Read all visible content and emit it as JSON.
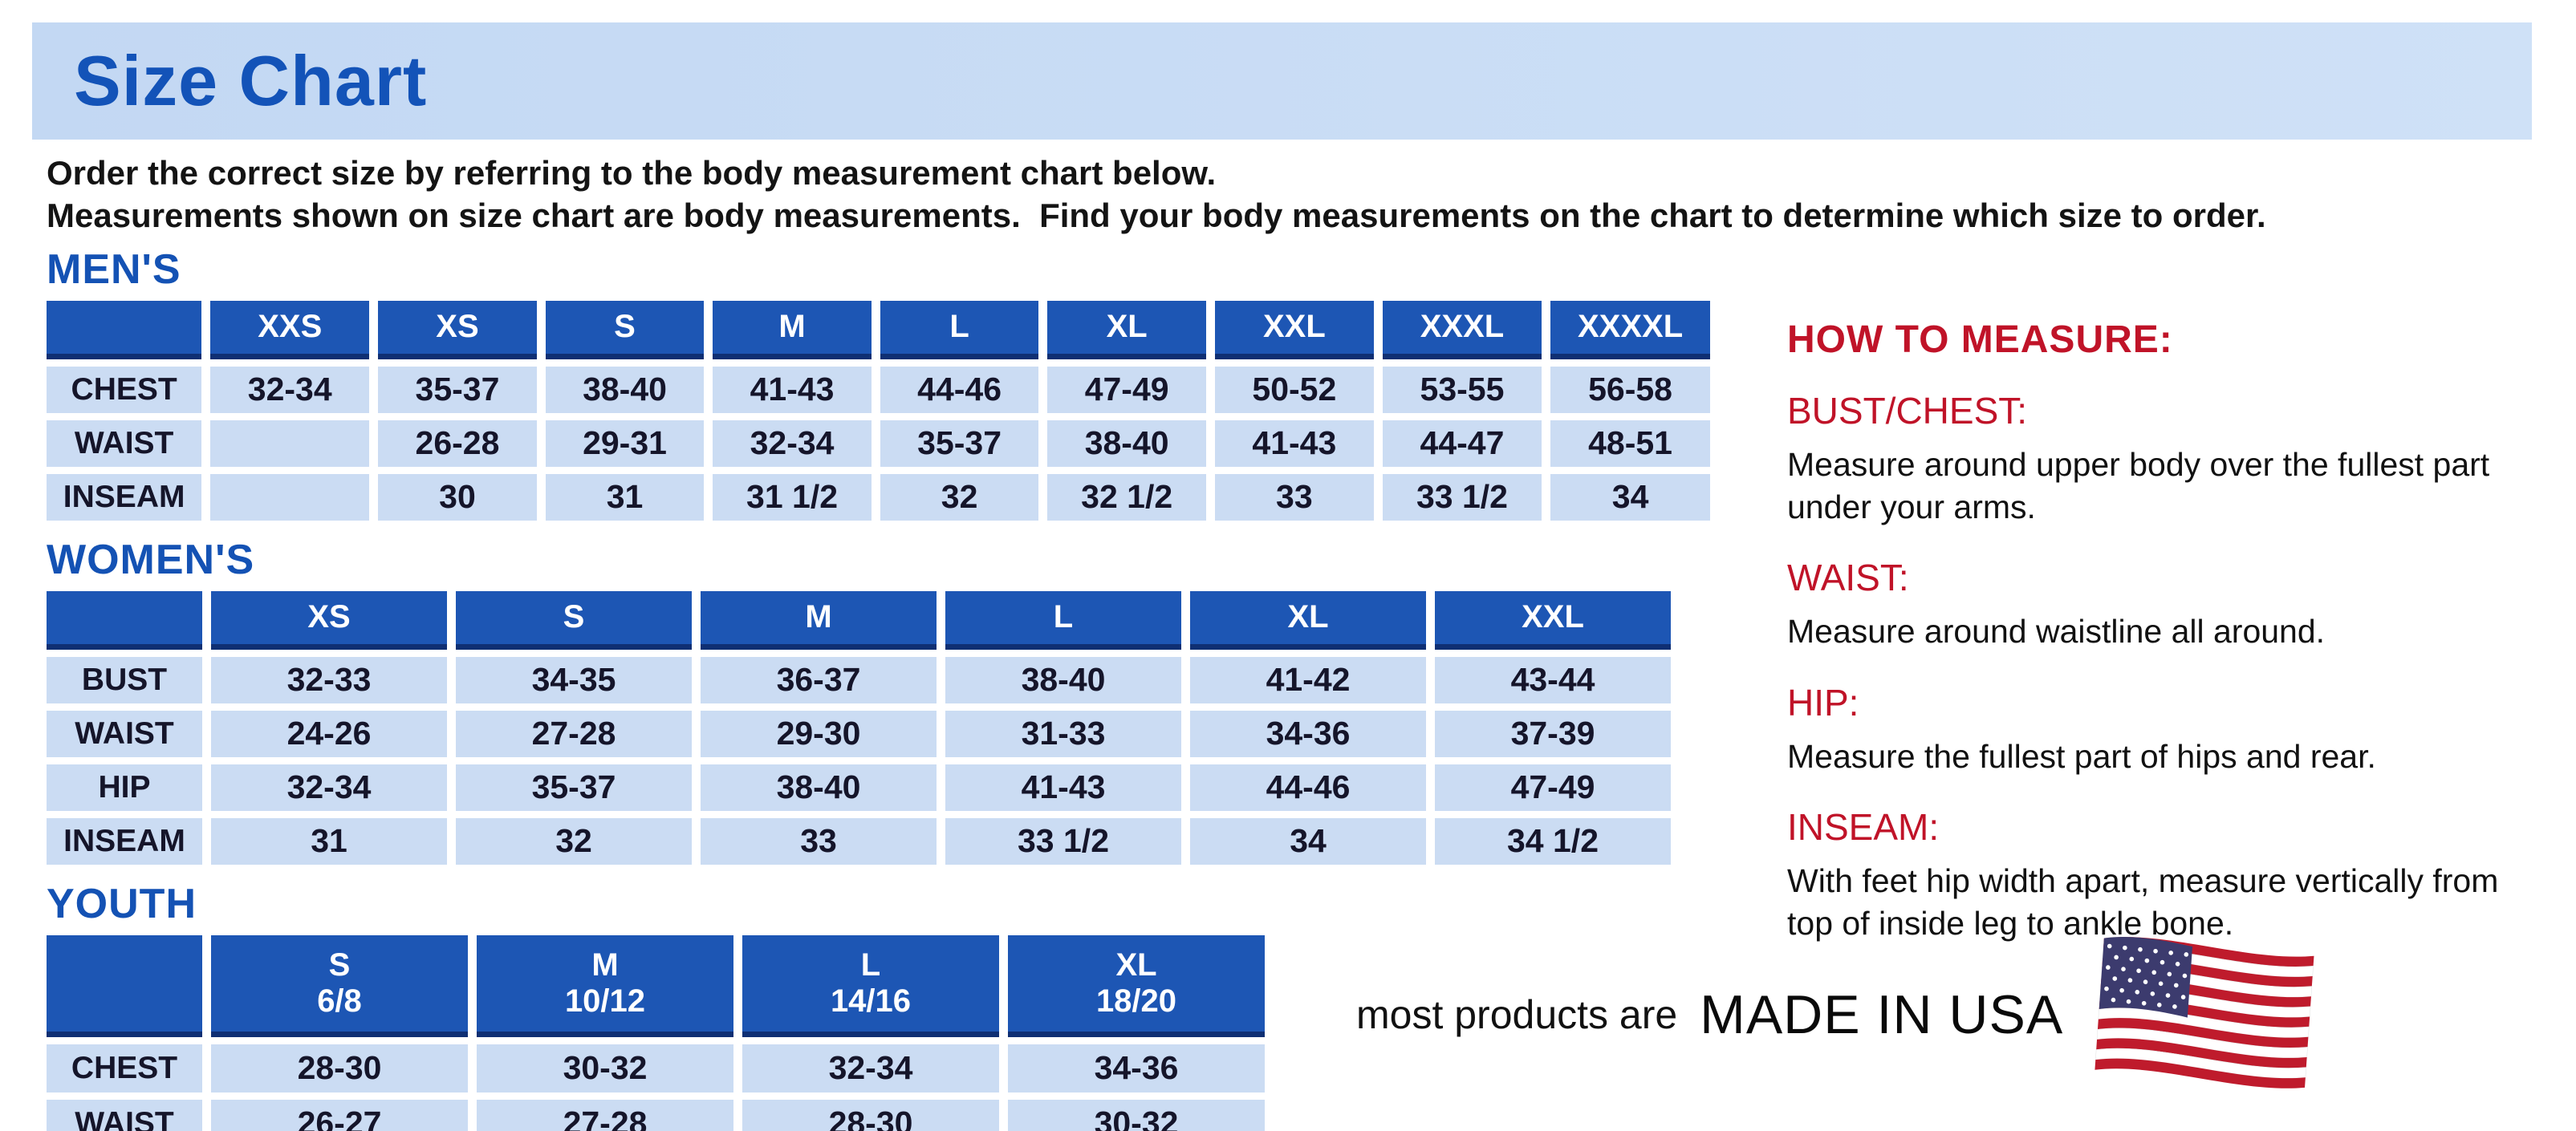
{
  "page": {
    "title": "Size Chart",
    "intro_line1": "Order the correct size by referring to the body measurement chart below.",
    "intro_line2": "Measurements shown on size chart are body measurements.  Find your body measurements on the chart to determine which size to order."
  },
  "colors": {
    "banner_background": "#c9dcf4",
    "title_blue": "#1353b8",
    "table_header_blue": "#1d56b4",
    "table_header_border": "#0f2f73",
    "table_cell_light_blue": "#cbdcf3",
    "accent_red": "#c01328",
    "flag_red": "#bf1b2c",
    "flag_canton_blue": "#3c3b6e"
  },
  "tables": {
    "mens": {
      "heading": "MEN'S",
      "columns": [
        {
          "label": "XXS"
        },
        {
          "label": "XS"
        },
        {
          "label": "S"
        },
        {
          "label": "M"
        },
        {
          "label": "L"
        },
        {
          "label": "XL"
        },
        {
          "label": "XXL"
        },
        {
          "label": "XXXL"
        },
        {
          "label": "XXXXL"
        }
      ],
      "rows": [
        {
          "label": "CHEST",
          "values": [
            "32-34",
            "35-37",
            "38-40",
            "41-43",
            "44-46",
            "47-49",
            "50-52",
            "53-55",
            "56-58"
          ]
        },
        {
          "label": "WAIST",
          "values": [
            "",
            "26-28",
            "29-31",
            "32-34",
            "35-37",
            "38-40",
            "41-43",
            "44-47",
            "48-51"
          ]
        },
        {
          "label": "INSEAM",
          "values": [
            "",
            "30",
            "31",
            "31 1/2",
            "32",
            "32 1/2",
            "33",
            "33 1/2",
            "34"
          ]
        }
      ]
    },
    "womens": {
      "heading": "WOMEN'S",
      "columns": [
        {
          "label": "XS"
        },
        {
          "label": "S"
        },
        {
          "label": "M"
        },
        {
          "label": "L"
        },
        {
          "label": "XL"
        },
        {
          "label": "XXL"
        }
      ],
      "rows": [
        {
          "label": "BUST",
          "values": [
            "32-33",
            "34-35",
            "36-37",
            "38-40",
            "41-42",
            "43-44"
          ]
        },
        {
          "label": "WAIST",
          "values": [
            "24-26",
            "27-28",
            "29-30",
            "31-33",
            "34-36",
            "37-39"
          ]
        },
        {
          "label": "HIP",
          "values": [
            "32-34",
            "35-37",
            "38-40",
            "41-43",
            "44-46",
            "47-49"
          ]
        },
        {
          "label": "INSEAM",
          "values": [
            "31",
            "32",
            "33",
            "33 1/2",
            "34",
            "34 1/2"
          ]
        }
      ]
    },
    "youth": {
      "heading": "YOUTH",
      "columns": [
        {
          "label": "S",
          "sub": "6/8"
        },
        {
          "label": "M",
          "sub": "10/12"
        },
        {
          "label": "L",
          "sub": "14/16"
        },
        {
          "label": "XL",
          "sub": "18/20"
        }
      ],
      "rows": [
        {
          "label": "CHEST",
          "values": [
            "28-30",
            "30-32",
            "32-34",
            "34-36"
          ]
        },
        {
          "label": "WAIST",
          "values": [
            "26-27",
            "27-28",
            "28-30",
            "30-32"
          ]
        }
      ]
    }
  },
  "how_to_measure": {
    "heading": "HOW TO MEASURE:",
    "sections": [
      {
        "label": "BUST/CHEST:",
        "text": "Measure around upper body over the fullest part under your arms."
      },
      {
        "label": "WAIST:",
        "text": "Measure around waistline all around."
      },
      {
        "label": "HIP:",
        "text": "Measure the fullest part of hips and rear."
      },
      {
        "label": "INSEAM:",
        "text": "With feet hip width apart, measure vertically from top of inside leg to ankle bone."
      }
    ]
  },
  "footer": {
    "prefix": "most products are",
    "made_in": "MADE IN USA"
  }
}
